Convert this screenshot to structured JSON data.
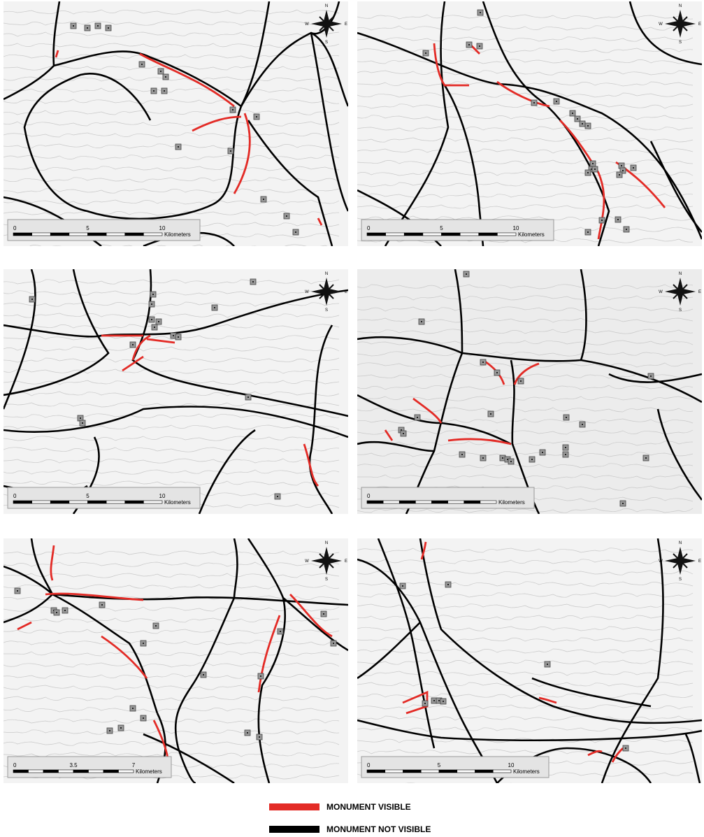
{
  "compass": {
    "n": "N",
    "e": "E",
    "s": "S",
    "w": "W"
  },
  "panels": [
    {
      "scale_labels": [
        "0",
        "5",
        "10"
      ],
      "scale_unit": "Kilometers"
    },
    {
      "scale_labels": [
        "0",
        "5",
        "10"
      ],
      "scale_unit": "Kilometers"
    },
    {
      "scale_labels": [
        "0",
        "5",
        "10"
      ],
      "scale_unit": "Kilometers"
    },
    {
      "scale_labels": [
        "0"
      ],
      "scale_unit": "Kilometers"
    },
    {
      "scale_labels": [
        "0",
        "3.5",
        "7"
      ],
      "scale_unit": "Kilometers"
    },
    {
      "scale_labels": [
        "0",
        "5",
        "10"
      ],
      "scale_unit": "Kilometers"
    }
  ],
  "legend": [
    {
      "label": "MONUMENT VISIBLE",
      "color": "#e32b26"
    },
    {
      "label": "MONUMENT NOT VISIBLE",
      "color": "#000000"
    }
  ]
}
